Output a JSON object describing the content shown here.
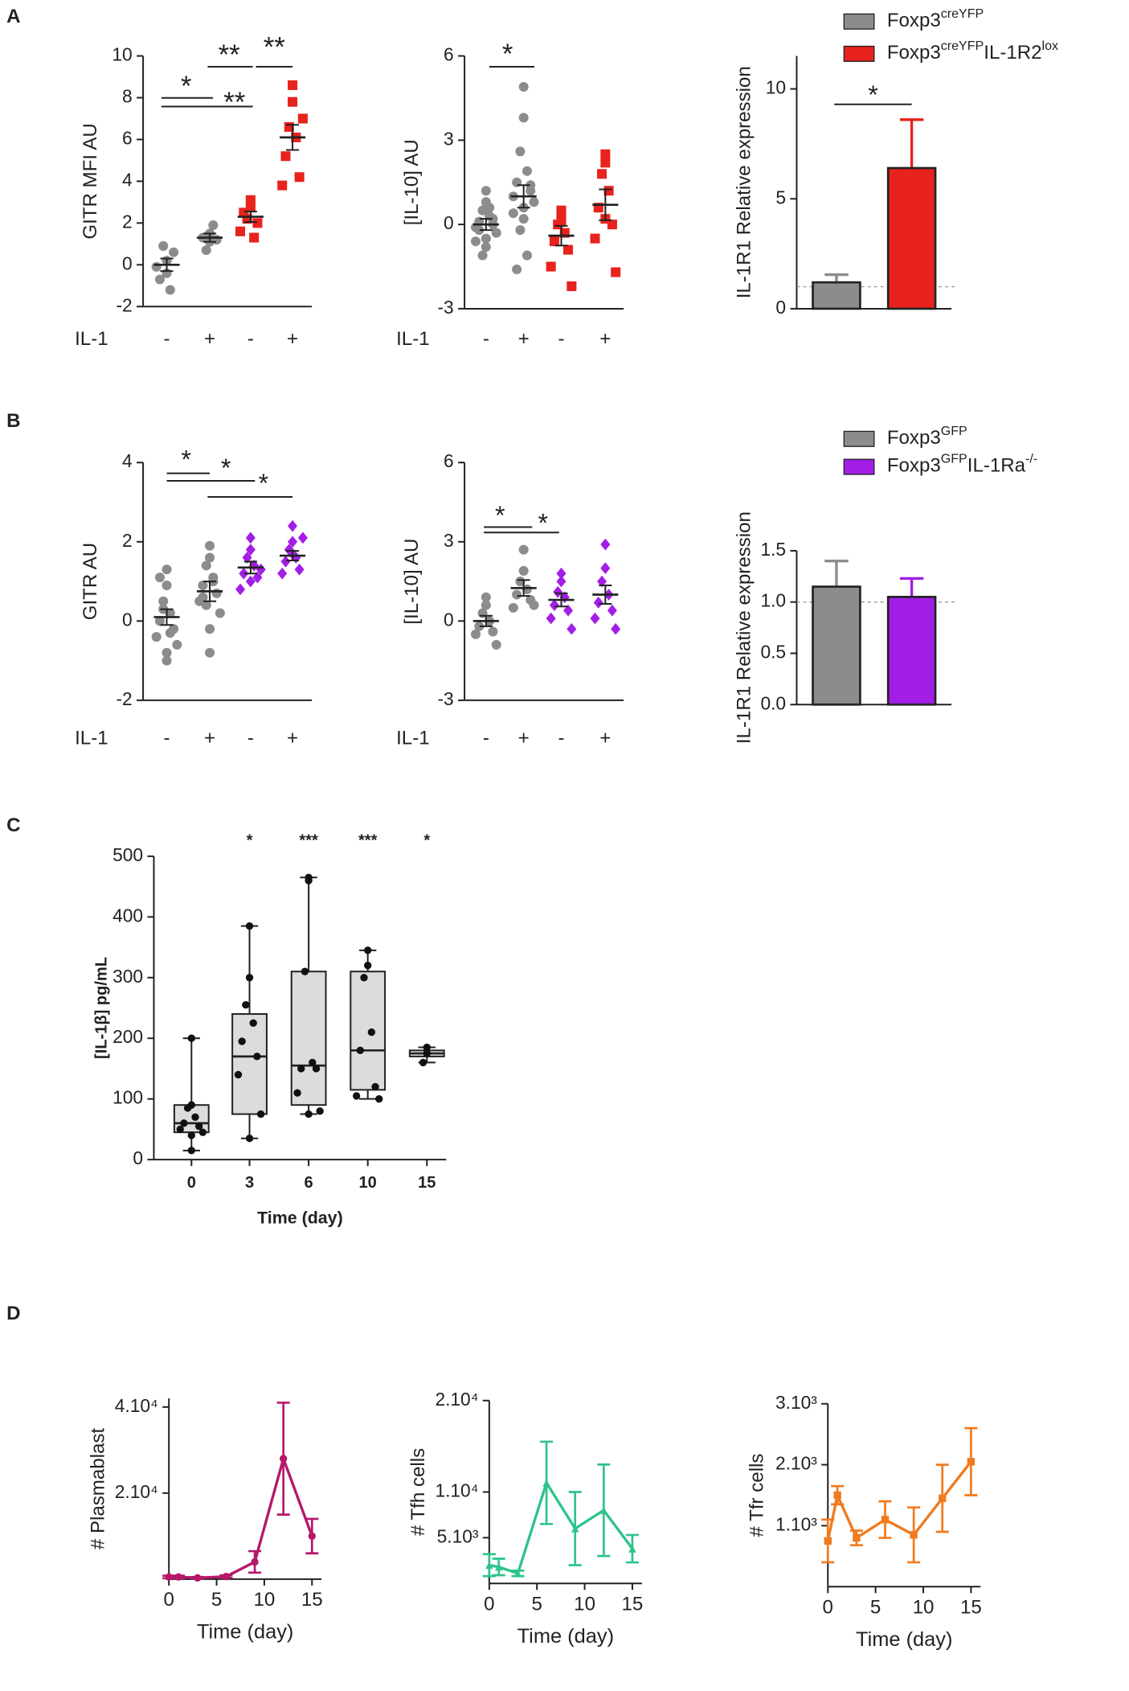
{
  "panels": [
    "A",
    "B",
    "C",
    "D"
  ],
  "chart_data": [
    {
      "type": "dot",
      "ylabel": "GITR MFI AU",
      "xlabel": "IL-1",
      "categories": [
        "-",
        "+",
        "-",
        "+"
      ],
      "ylim": [
        -2,
        10
      ],
      "yticks": [
        -2,
        0,
        2,
        4,
        6,
        8,
        10
      ],
      "colors": [
        "#8c8c8c",
        "#8c8c8c",
        "#e8221c",
        "#e8221c"
      ],
      "markers": [
        "circle",
        "circle",
        "square",
        "square"
      ],
      "values": [
        [
          0.2,
          -0.4,
          0.9,
          -1.2,
          -0.7,
          0.6,
          -0.1
        ],
        [
          1.1,
          1.5,
          0.7,
          1.9,
          1.3,
          1.2
        ],
        [
          3.1,
          2.8,
          2.2,
          1.3,
          2.5,
          2.0,
          1.6
        ],
        [
          8.6,
          7.8,
          6.6,
          6.1,
          5.2,
          4.2,
          3.8,
          7.0
        ]
      ],
      "means": [
        0,
        1.3,
        2.3,
        6.1
      ],
      "errors": [
        0.3,
        0.2,
        0.25,
        0.6
      ],
      "annotations": [
        "*",
        "**",
        "**",
        "**"
      ]
    },
    {
      "type": "dot",
      "ylabel": "[IL-10] AU",
      "xlabel": "IL-1",
      "categories": [
        "-",
        "+",
        "-",
        "+"
      ],
      "ylim": [
        -3,
        6
      ],
      "yticks": [
        -3,
        0,
        3,
        6
      ],
      "colors": [
        "#8c8c8c",
        "#8c8c8c",
        "#e8221c",
        "#e8221c"
      ],
      "markers": [
        "circle",
        "circle",
        "square",
        "square"
      ],
      "values": [
        [
          1.2,
          0.8,
          0.5,
          0.3,
          0.1,
          0,
          -0.1,
          -0.3,
          -0.5,
          -0.8,
          -1.1,
          0.6,
          -0.2,
          0.2,
          -0.6
        ],
        [
          4.9,
          3.8,
          2.6,
          1.9,
          1.5,
          1.2,
          1.0,
          0.8,
          0.6,
          0.2,
          -0.2,
          -1.1,
          -1.6,
          1.4,
          0.4
        ],
        [
          0.5,
          0.3,
          0,
          -0.3,
          -0.6,
          -0.9,
          -1.5,
          -2.2,
          0.1
        ],
        [
          2.5,
          2.2,
          1.8,
          1.2,
          0.6,
          0,
          -0.5,
          -1.7,
          0.2
        ]
      ],
      "means": [
        0,
        1.0,
        -0.4,
        0.7
      ],
      "errors": [
        0.2,
        0.4,
        0.35,
        0.55
      ],
      "annotations": [
        "*"
      ]
    },
    {
      "type": "bar",
      "ylabel": "IL-1R1 Relative expression",
      "ylim": [
        0,
        11.5
      ],
      "yticks": [
        0,
        5,
        10
      ],
      "legend": [
        [
          "Foxp3",
          "creYFP"
        ],
        [
          "Foxp3",
          "creYFP",
          "IL-1R2",
          "lox"
        ]
      ],
      "colors": [
        "#8c8c8c",
        "#e8221c"
      ],
      "values": [
        1.2,
        6.4
      ],
      "errors": [
        0.35,
        2.2
      ],
      "reference": 1,
      "annotations": [
        "*"
      ]
    },
    {
      "type": "dot",
      "ylabel": "GITR AU",
      "xlabel": "IL-1",
      "categories": [
        "-",
        "+",
        "-",
        "+"
      ],
      "ylim": [
        -2,
        4
      ],
      "yticks": [
        -2,
        0,
        2,
        4
      ],
      "colors": [
        "#8c8c8c",
        "#8c8c8c",
        "#a21ee6",
        "#a21ee6"
      ],
      "markers": [
        "circle",
        "circle",
        "diamond",
        "diamond"
      ],
      "values": [
        [
          1.3,
          0.9,
          0.5,
          0.2,
          0,
          -0.2,
          -0.4,
          -0.6,
          -0.8,
          -1.0,
          0.3,
          -0.3,
          1.1
        ],
        [
          1.9,
          1.6,
          1.4,
          1.1,
          0.9,
          0.7,
          0.5,
          0.2,
          -0.2,
          -0.8,
          0.4,
          1.0,
          0.6
        ],
        [
          2.1,
          1.8,
          1.6,
          1.4,
          1.2,
          1.1,
          0.8,
          1.3,
          1.0
        ],
        [
          2.4,
          2.0,
          1.8,
          1.6,
          1.5,
          1.3,
          1.2,
          2.1,
          1.7
        ]
      ],
      "means": [
        0.1,
        0.75,
        1.35,
        1.65
      ],
      "errors": [
        0.2,
        0.25,
        0.15,
        0.12
      ],
      "annotations": [
        "*",
        "*",
        "*"
      ]
    },
    {
      "type": "dot",
      "ylabel": "[IL-10] AU",
      "xlabel": "IL-1",
      "categories": [
        "-",
        "+",
        "-",
        "+"
      ],
      "ylim": [
        -3,
        6
      ],
      "yticks": [
        -3,
        0,
        3,
        6
      ],
      "colors": [
        "#8c8c8c",
        "#8c8c8c",
        "#a21ee6",
        "#a21ee6"
      ],
      "markers": [
        "circle",
        "circle",
        "diamond",
        "diamond"
      ],
      "values": [
        [
          0.9,
          0.6,
          0.3,
          0,
          -0.2,
          -0.4,
          -0.5,
          -0.9
        ],
        [
          2.7,
          1.9,
          1.5,
          1.2,
          1.0,
          0.8,
          0.5,
          0.6
        ],
        [
          1.8,
          1.5,
          1.1,
          0.9,
          0.6,
          0.4,
          0.1,
          -0.3
        ],
        [
          2.9,
          2.0,
          1.5,
          1.0,
          0.7,
          0.4,
          0.1,
          -0.3
        ]
      ],
      "means": [
        0,
        1.25,
        0.8,
        1.0
      ],
      "errors": [
        0.2,
        0.3,
        0.25,
        0.35
      ],
      "annotations": [
        "*",
        "*"
      ]
    },
    {
      "type": "bar",
      "ylabel": "IL-1R1 Relative expression",
      "ylim": [
        0,
        1.5
      ],
      "yticks": [
        {
          "value": 0,
          "label": "0.0"
        },
        {
          "value": 0.5,
          "label": "0.5"
        },
        {
          "value": 1,
          "label": "1.0"
        },
        {
          "value": 1.5,
          "label": "1.5"
        }
      ],
      "legend": [
        [
          "Foxp3",
          "GFP"
        ],
        [
          "Foxp3",
          "GFP",
          "IL-1Ra",
          "-/-"
        ]
      ],
      "colors": [
        "#8c8c8c",
        "#a21ee6"
      ],
      "values": [
        1.15,
        1.05
      ],
      "errors": [
        0.25,
        0.18
      ],
      "reference": 1,
      "annotations": []
    },
    {
      "type": "box",
      "ylabel": "[IL-1β] pg/mL",
      "xlabel": "Time (day)",
      "categories": [
        "0",
        "3",
        "6",
        "10",
        "15"
      ],
      "ylim": [
        0,
        500
      ],
      "yticks": [
        0,
        100,
        200,
        300,
        400,
        500
      ],
      "stats": [
        [
          15,
          45,
          60,
          90,
          200
        ],
        [
          35,
          75,
          170,
          240,
          385
        ],
        [
          75,
          90,
          155,
          310,
          465
        ],
        [
          100,
          115,
          180,
          310,
          345
        ],
        [
          160,
          170,
          175,
          180,
          185
        ]
      ],
      "points": [
        [
          200,
          90,
          85,
          70,
          60,
          55,
          50,
          45,
          40,
          15
        ],
        [
          385,
          300,
          255,
          225,
          195,
          170,
          140,
          75,
          35
        ],
        [
          465,
          460,
          310,
          160,
          150,
          150,
          110,
          80,
          75
        ],
        [
          345,
          320,
          300,
          210,
          180,
          120,
          105,
          100
        ],
        [
          185,
          175,
          160
        ]
      ],
      "annotations": [
        null,
        "*",
        "***",
        "***",
        "*"
      ]
    },
    {
      "type": "line",
      "ylabel": "# Plasmablast",
      "xlabel": "Time (day)",
      "color": "#b5186a",
      "marker": "circle",
      "x": [
        0,
        1,
        3,
        6,
        9,
        12,
        15
      ],
      "values": [
        500,
        500,
        300,
        600,
        4000,
        28000,
        10000
      ],
      "errors": [
        300,
        300,
        200,
        300,
        2500,
        13000,
        4000
      ],
      "xlim": [
        0,
        16
      ],
      "xticks": [
        0,
        5,
        10,
        15
      ],
      "ylim": [
        0,
        42000
      ],
      "yticks": [
        {
          "value": 20000,
          "label": "2.10⁴"
        },
        {
          "value": 40000,
          "label": "4.10⁴"
        }
      ]
    },
    {
      "type": "line",
      "ylabel": "# Tfh cells",
      "xlabel": "Time (day)",
      "color": "#2ec48a",
      "marker": "triangle",
      "x": [
        0,
        1,
        3,
        6,
        9,
        12,
        15
      ],
      "values": [
        2000,
        1800,
        1100,
        11000,
        6000,
        8000,
        3800
      ],
      "errors": [
        1200,
        900,
        300,
        4500,
        4000,
        5000,
        1500
      ],
      "xlim": [
        0,
        16
      ],
      "xticks": [
        0,
        5,
        10,
        15
      ],
      "ylim": [
        0,
        20000
      ],
      "yticks": [
        {
          "value": 5000,
          "label": "5.10³"
        },
        {
          "value": 10000,
          "label": "1.10⁴"
        },
        {
          "value": 20000,
          "label": "2.10⁴"
        }
      ]
    },
    {
      "type": "line",
      "ylabel": "# Tfr cells",
      "xlabel": "Time (day)",
      "color": "#f07a1e",
      "marker": "square",
      "x": [
        0,
        1,
        3,
        6,
        9,
        12,
        15
      ],
      "values": [
        750,
        1500,
        800,
        1100,
        850,
        1450,
        2050
      ],
      "errors": [
        350,
        150,
        120,
        300,
        450,
        550,
        550
      ],
      "xlim": [
        0,
        16
      ],
      "xticks": [
        0,
        5,
        10,
        15
      ],
      "ylim": [
        0,
        3000
      ],
      "yticks": [
        {
          "value": 1000,
          "label": "1.10³"
        },
        {
          "value": 2000,
          "label": "2.10³"
        },
        {
          "value": 3000,
          "label": "3.10³"
        }
      ]
    }
  ]
}
